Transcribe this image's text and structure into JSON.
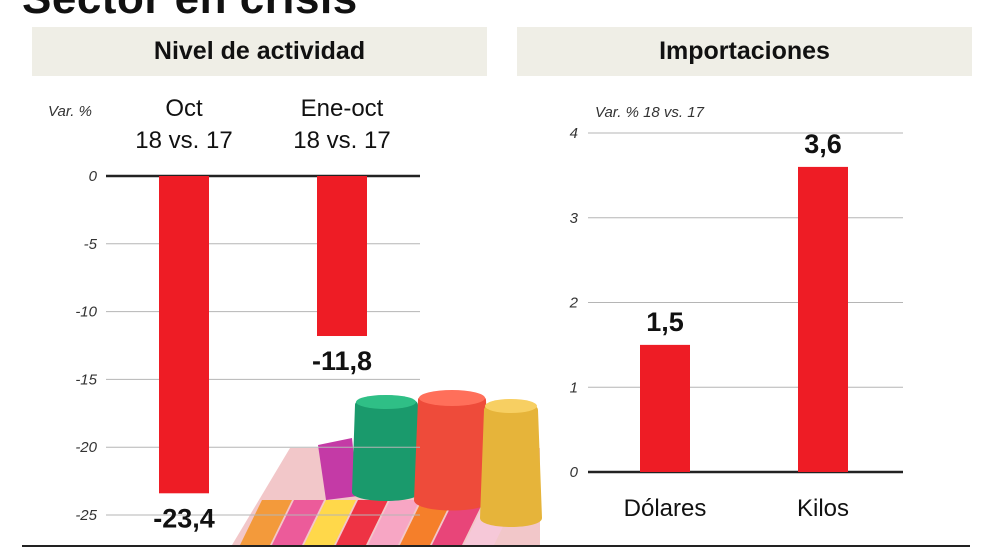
{
  "headline": "Sector en crisis",
  "colors": {
    "bar": "#ee1c25",
    "panel_header_bg": "#efeee6",
    "grid": "#b5b5b5",
    "zero_line": "#222222"
  },
  "chart_data": [
    {
      "type": "bar",
      "title": "Nivel de actividad",
      "ylabel": "Var. %",
      "categories": [
        "Oct\n18 vs. 17",
        "Ene-oct\n18 vs. 17"
      ],
      "values": [
        -23.4,
        -11.8
      ],
      "value_labels": [
        "-23,4",
        "-11,8"
      ],
      "ylim": [
        -25,
        0
      ],
      "yticks": [
        0,
        -5,
        -10,
        -15,
        -20,
        -25
      ],
      "ytick_labels": [
        "0",
        "-5",
        "-10",
        "-15",
        "-20",
        "-25"
      ],
      "grid": true,
      "decoration": "spools-of-colored-thread-photo"
    },
    {
      "type": "bar",
      "title": "Importaciones",
      "ylabel": "Var. % 18 vs. 17",
      "categories": [
        "Dólares",
        "Kilos"
      ],
      "values": [
        1.5,
        3.6
      ],
      "value_labels": [
        "1,5",
        "3,6"
      ],
      "ylim": [
        0,
        4
      ],
      "yticks": [
        0,
        1,
        2,
        3,
        4
      ],
      "ytick_labels": [
        "0",
        "1",
        "2",
        "3",
        "4"
      ],
      "grid": true
    }
  ]
}
